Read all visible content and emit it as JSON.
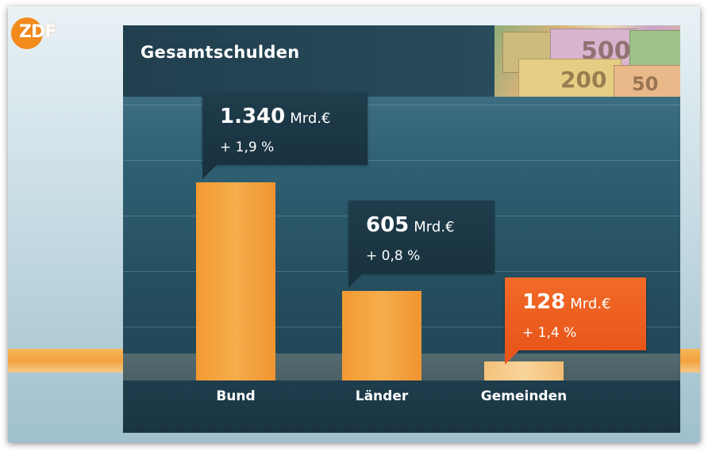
{
  "logo": {
    "text": "ZDF"
  },
  "colors": {
    "bar": "#f5a23e",
    "bar_light": "#f6c987",
    "callout": "#1c3846",
    "callout_highlight": "#ee6020",
    "panel": "#2a5567"
  },
  "chart_data": {
    "type": "bar",
    "title": "Gesamtschulden",
    "categories": [
      "Bund",
      "Länder",
      "Gemeinden"
    ],
    "values": [
      1340,
      605,
      128
    ],
    "unit": "Mrd.€",
    "labels": [
      {
        "value": "1.340",
        "unit": "Mrd.€",
        "change": "+ 1,9 %"
      },
      {
        "value": "605",
        "unit": "Mrd.€",
        "change": "+ 0,8 %"
      },
      {
        "value": "128",
        "unit": "Mrd.€",
        "change": "+ 1,4 %"
      }
    ],
    "highlight_index": 2,
    "ylim": [
      0,
      1340
    ],
    "grid": true,
    "legend": "none"
  }
}
